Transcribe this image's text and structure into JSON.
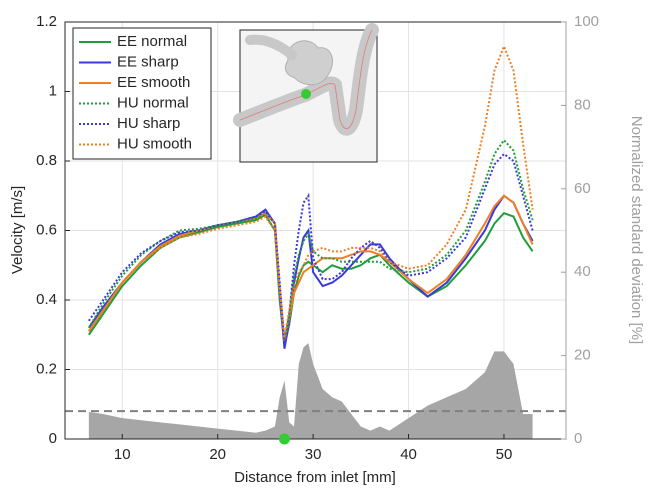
{
  "chart_data": {
    "type": "line",
    "xlabel": "Distance from inlet [mm]",
    "ylabel": "Velocity [m/s]",
    "y2label": "Normalized standard deviation [%]",
    "x": [
      6.5,
      8,
      10,
      12,
      14,
      16,
      18,
      20,
      22,
      24,
      25,
      26,
      26.5,
      27,
      27.5,
      28,
      28.5,
      29,
      29.5,
      30,
      31,
      32,
      33,
      34,
      35,
      36,
      37,
      38,
      40,
      42,
      44,
      46,
      48,
      49,
      50,
      51,
      52,
      53
    ],
    "series": [
      {
        "name": "EE normal",
        "color": "#1f9e3a",
        "linestyle": "solid",
        "values": [
          0.3,
          0.36,
          0.44,
          0.5,
          0.55,
          0.58,
          0.595,
          0.61,
          0.62,
          0.63,
          0.645,
          0.6,
          0.4,
          0.27,
          0.33,
          0.42,
          0.47,
          0.5,
          0.51,
          0.5,
          0.48,
          0.5,
          0.49,
          0.49,
          0.5,
          0.52,
          0.53,
          0.5,
          0.45,
          0.41,
          0.44,
          0.5,
          0.57,
          0.62,
          0.65,
          0.64,
          0.58,
          0.54
        ]
      },
      {
        "name": "EE sharp",
        "color": "#3a3ad8",
        "linestyle": "solid",
        "values": [
          0.32,
          0.38,
          0.45,
          0.51,
          0.56,
          0.59,
          0.6,
          0.615,
          0.625,
          0.64,
          0.66,
          0.62,
          0.42,
          0.26,
          0.34,
          0.45,
          0.52,
          0.58,
          0.6,
          0.48,
          0.44,
          0.45,
          0.47,
          0.5,
          0.53,
          0.56,
          0.56,
          0.52,
          0.46,
          0.41,
          0.45,
          0.52,
          0.6,
          0.66,
          0.7,
          0.68,
          0.62,
          0.57
        ]
      },
      {
        "name": "EE smooth",
        "color": "#f07f24",
        "linestyle": "solid",
        "values": [
          0.31,
          0.37,
          0.45,
          0.51,
          0.555,
          0.585,
          0.6,
          0.615,
          0.625,
          0.635,
          0.65,
          0.62,
          0.43,
          0.28,
          0.35,
          0.42,
          0.45,
          0.48,
          0.49,
          0.5,
          0.52,
          0.52,
          0.52,
          0.53,
          0.54,
          0.54,
          0.53,
          0.51,
          0.46,
          0.42,
          0.46,
          0.53,
          0.62,
          0.67,
          0.7,
          0.68,
          0.62,
          0.56
        ]
      },
      {
        "name": "HU normal",
        "color": "#1f9e3a",
        "linestyle": "dotted",
        "values": [
          0.32,
          0.39,
          0.47,
          0.53,
          0.57,
          0.6,
          0.605,
          0.615,
          0.625,
          0.635,
          0.645,
          0.6,
          0.42,
          0.28,
          0.36,
          0.47,
          0.53,
          0.57,
          0.59,
          0.54,
          0.52,
          0.52,
          0.51,
          0.51,
          0.51,
          0.51,
          0.51,
          0.49,
          0.48,
          0.49,
          0.53,
          0.6,
          0.74,
          0.82,
          0.86,
          0.83,
          0.72,
          0.63
        ]
      },
      {
        "name": "HU sharp",
        "color": "#3a3ad8",
        "linestyle": "dotted",
        "values": [
          0.34,
          0.4,
          0.48,
          0.535,
          0.57,
          0.595,
          0.6,
          0.615,
          0.625,
          0.64,
          0.655,
          0.62,
          0.45,
          0.27,
          0.36,
          0.5,
          0.6,
          0.68,
          0.7,
          0.52,
          0.46,
          0.46,
          0.48,
          0.52,
          0.55,
          0.57,
          0.55,
          0.51,
          0.47,
          0.48,
          0.52,
          0.58,
          0.72,
          0.79,
          0.82,
          0.8,
          0.7,
          0.6
        ]
      },
      {
        "name": "HU smooth",
        "color": "#f07f24",
        "linestyle": "dotted",
        "values": [
          0.31,
          0.37,
          0.45,
          0.51,
          0.55,
          0.58,
          0.59,
          0.605,
          0.615,
          0.625,
          0.64,
          0.6,
          0.44,
          0.29,
          0.37,
          0.44,
          0.48,
          0.5,
          0.53,
          0.54,
          0.55,
          0.54,
          0.54,
          0.55,
          0.55,
          0.55,
          0.54,
          0.51,
          0.49,
          0.5,
          0.56,
          0.66,
          0.9,
          1.06,
          1.13,
          1.06,
          0.85,
          0.66
        ]
      }
    ],
    "area": {
      "axis": "y2",
      "color": "#a6a6a6",
      "values": [
        6.5,
        6,
        5,
        4.5,
        4,
        3.5,
        3,
        2.5,
        2,
        1.5,
        2,
        3,
        10,
        14,
        4,
        3,
        18,
        22,
        23,
        18,
        12,
        10,
        9,
        6,
        3,
        2,
        3,
        2,
        5,
        8,
        10,
        12,
        16,
        21,
        21,
        18,
        6,
        6
      ]
    },
    "reference_line": {
      "axis": "y2",
      "value": 6.67,
      "color": "#808080"
    },
    "marker": {
      "x": 27,
      "y": 0,
      "color": "#33cc33"
    },
    "xlim": [
      4,
      56.5
    ],
    "xticks": [
      10,
      20,
      30,
      40,
      50
    ],
    "ylim": [
      0,
      1.2
    ],
    "yticks": [
      0,
      0.2,
      0.4,
      0.6,
      0.8,
      1,
      1.2
    ],
    "y2lim": [
      0,
      100
    ],
    "y2ticks": [
      0,
      20,
      40,
      60,
      80,
      100
    ],
    "grid": true,
    "legend": "upper-left"
  }
}
